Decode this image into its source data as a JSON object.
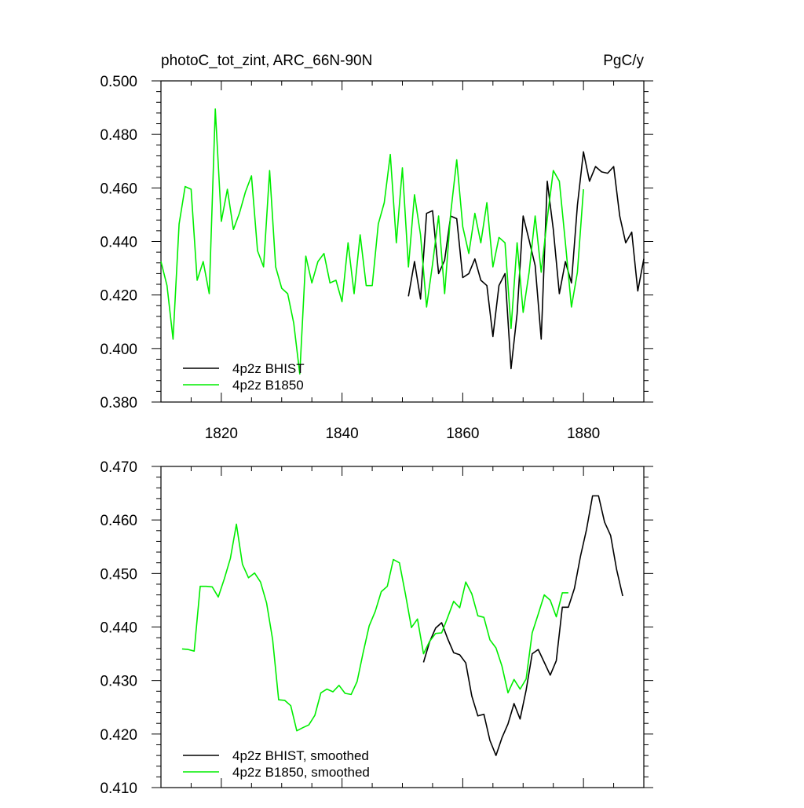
{
  "chart_data": [
    {
      "type": "line",
      "title": "photoC_tot_zint, ARC_66N-90N",
      "units": "PgC/y",
      "xlim": [
        1810,
        1890
      ],
      "ylim": [
        0.38,
        0.5
      ],
      "x_ticks": [
        1820,
        1840,
        1860,
        1880
      ],
      "x_tick_labels": [
        "1820",
        "1840",
        "1860",
        "1880"
      ],
      "y_ticks": [
        0.38,
        0.4,
        0.42,
        0.44,
        0.46,
        0.48,
        0.5
      ],
      "y_tick_labels": [
        "0.380",
        "0.400",
        "0.420",
        "0.440",
        "0.460",
        "0.480",
        "0.500"
      ],
      "grid": false,
      "legend_position": "bottom-left",
      "series": [
        {
          "name": "4p2z BHIST",
          "color": "#000000",
          "x": [
            1851,
            1852,
            1853,
            1854,
            1855,
            1856,
            1857,
            1858,
            1859,
            1860,
            1861,
            1862,
            1863,
            1864,
            1865,
            1866,
            1867,
            1868,
            1869,
            1870,
            1871,
            1872,
            1873,
            1874,
            1875,
            1876,
            1877,
            1878,
            1879,
            1880,
            1881,
            1882,
            1883,
            1884,
            1885,
            1886,
            1887,
            1888,
            1889,
            1890
          ],
          "y": [
            0.4195,
            0.4325,
            0.4185,
            0.4505,
            0.4515,
            0.428,
            0.433,
            0.4495,
            0.4485,
            0.4265,
            0.428,
            0.4335,
            0.4255,
            0.4235,
            0.4045,
            0.4235,
            0.428,
            0.3925,
            0.413,
            0.4495,
            0.4405,
            0.431,
            0.4035,
            0.4625,
            0.4445,
            0.4205,
            0.4325,
            0.4245,
            0.4535,
            0.4735,
            0.4625,
            0.468,
            0.466,
            0.4655,
            0.468,
            0.4495,
            0.4395,
            0.4435,
            0.4215,
            0.4335
          ]
        },
        {
          "name": "4p2z B1850",
          "color": "#00ee00",
          "x": [
            1810,
            1811,
            1812,
            1813,
            1814,
            1815,
            1816,
            1817,
            1818,
            1819,
            1820,
            1821,
            1822,
            1823,
            1824,
            1825,
            1826,
            1827,
            1828,
            1829,
            1830,
            1831,
            1832,
            1833,
            1834,
            1835,
            1836,
            1837,
            1838,
            1839,
            1840,
            1841,
            1842,
            1843,
            1844,
            1845,
            1846,
            1847,
            1848,
            1849,
            1850,
            1851,
            1852,
            1853,
            1854,
            1855,
            1856,
            1857,
            1858,
            1859,
            1860,
            1861,
            1862,
            1863,
            1864,
            1865,
            1866,
            1867,
            1868,
            1869,
            1870,
            1871,
            1872,
            1873,
            1874,
            1875,
            1876,
            1877,
            1878,
            1879,
            1880
          ],
          "y": [
            0.4325,
            0.4235,
            0.4035,
            0.4465,
            0.4605,
            0.4595,
            0.4255,
            0.4325,
            0.4205,
            0.4895,
            0.4475,
            0.4595,
            0.4445,
            0.4505,
            0.4585,
            0.4645,
            0.4365,
            0.4305,
            0.4665,
            0.4305,
            0.4225,
            0.4205,
            0.4095,
            0.3905,
            0.4345,
            0.4245,
            0.4325,
            0.4355,
            0.4245,
            0.4255,
            0.4175,
            0.4395,
            0.4205,
            0.4425,
            0.4235,
            0.4235,
            0.4465,
            0.4545,
            0.4725,
            0.4395,
            0.4675,
            0.4305,
            0.4575,
            0.4425,
            0.4155,
            0.4315,
            0.4495,
            0.4205,
            0.4505,
            0.4705,
            0.4455,
            0.4355,
            0.4505,
            0.4395,
            0.4545,
            0.4305,
            0.4415,
            0.4395,
            0.4075,
            0.4395,
            0.4135,
            0.4285,
            0.4495,
            0.4285,
            0.4485,
            0.4665,
            0.4625,
            0.4395,
            0.4155,
            0.4285,
            0.4595
          ]
        }
      ]
    },
    {
      "type": "line",
      "xlim": [
        1810,
        1890
      ],
      "ylim": [
        0.41,
        0.47
      ],
      "x_ticks": [
        1820,
        1840,
        1860,
        1880
      ],
      "y_ticks": [
        0.41,
        0.42,
        0.43,
        0.44,
        0.45,
        0.46,
        0.47
      ],
      "y_tick_labels": [
        "0.410",
        "0.420",
        "0.430",
        "0.440",
        "0.450",
        "0.460",
        "0.470"
      ],
      "grid": false,
      "legend_position": "bottom-left",
      "series": [
        {
          "name": "4p2z BHIST, smoothed",
          "color": "#000000",
          "x": [
            1853.5,
            1854.5,
            1855.5,
            1856.5,
            1857.5,
            1858.5,
            1859.5,
            1860.5,
            1861.5,
            1862.5,
            1863.5,
            1864.5,
            1865.5,
            1866.5,
            1867.5,
            1868.5,
            1869.5,
            1870.5,
            1871.5,
            1872.5,
            1873.5,
            1874.5,
            1875.5,
            1876.5,
            1877.5,
            1878.5,
            1879.5,
            1880.5,
            1881.5,
            1882.5,
            1883.5,
            1884.5,
            1885.5,
            1886.5
          ],
          "y": [
            0.4334,
            0.4372,
            0.4398,
            0.4408,
            0.4378,
            0.4352,
            0.4348,
            0.4333,
            0.4271,
            0.4234,
            0.4237,
            0.4188,
            0.416,
            0.4193,
            0.4219,
            0.4257,
            0.4228,
            0.4282,
            0.435,
            0.4358,
            0.4334,
            0.431,
            0.4337,
            0.4437,
            0.4437,
            0.4472,
            0.4532,
            0.4582,
            0.4645,
            0.4645,
            0.4596,
            0.4571,
            0.4507,
            0.4458
          ]
        },
        {
          "name": "4p2z B1850, smoothed",
          "color": "#00ee00",
          "x": [
            1813.5,
            1814.5,
            1815.5,
            1816.5,
            1817.5,
            1818.5,
            1819.5,
            1820.5,
            1821.5,
            1822.5,
            1823.5,
            1824.5,
            1825.5,
            1826.5,
            1827.5,
            1828.5,
            1829.5,
            1830.5,
            1831.5,
            1832.5,
            1833.5,
            1834.5,
            1835.5,
            1836.5,
            1837.5,
            1838.5,
            1839.5,
            1840.5,
            1841.5,
            1842.5,
            1843.5,
            1844.5,
            1845.5,
            1846.5,
            1847.5,
            1848.5,
            1849.5,
            1850.5,
            1851.5,
            1852.5,
            1853.5,
            1854.5,
            1855.5,
            1856.5,
            1857.5,
            1858.5,
            1859.5,
            1860.5,
            1861.5,
            1862.5,
            1863.5,
            1864.5,
            1865.5,
            1866.5,
            1867.5,
            1868.5,
            1869.5,
            1870.5,
            1871.5,
            1872.5,
            1873.5,
            1874.5,
            1875.5,
            1876.5,
            1877.5
          ],
          "y": [
            0.4359,
            0.4358,
            0.4355,
            0.4476,
            0.4476,
            0.4475,
            0.4456,
            0.449,
            0.4528,
            0.4592,
            0.4517,
            0.4492,
            0.4501,
            0.4484,
            0.4445,
            0.4377,
            0.4264,
            0.4263,
            0.4253,
            0.4206,
            0.4212,
            0.4217,
            0.4235,
            0.4277,
            0.4284,
            0.4279,
            0.4291,
            0.4276,
            0.4274,
            0.4298,
            0.4352,
            0.4402,
            0.4429,
            0.4466,
            0.4476,
            0.4526,
            0.452,
            0.4462,
            0.4399,
            0.4415,
            0.435,
            0.4373,
            0.4388,
            0.4389,
            0.4418,
            0.4448,
            0.4436,
            0.4484,
            0.4462,
            0.4421,
            0.4418,
            0.4376,
            0.4361,
            0.4327,
            0.4277,
            0.4302,
            0.4284,
            0.4303,
            0.4389,
            0.4424,
            0.446,
            0.445,
            0.4419,
            0.4464,
            0.4464
          ]
        }
      ]
    }
  ]
}
